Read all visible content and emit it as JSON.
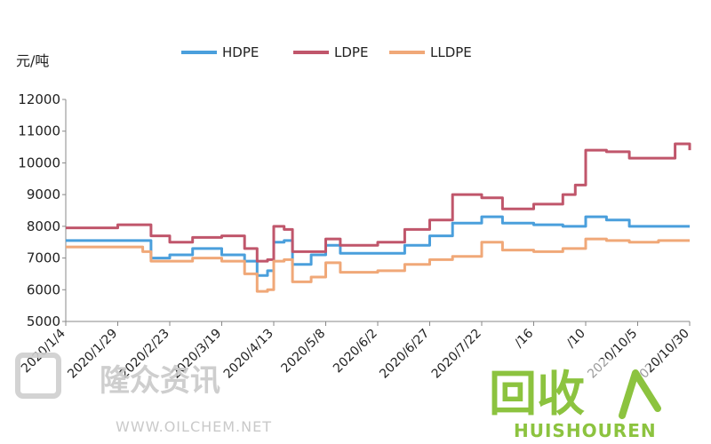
{
  "chart_data": {
    "type": "line",
    "ylabel": "元/吨",
    "ylim": [
      5000,
      12000
    ],
    "yticks": [
      5000,
      6000,
      7000,
      8000,
      9000,
      10000,
      11000,
      12000
    ],
    "x_tick_labels": [
      "2020/1/4",
      "2020/1/29",
      "2020/2/23",
      "2020/3/19",
      "2020/4/13",
      "2020/5/8",
      "2020/6/2",
      "2020/6/27",
      "2020/7/22",
      "2020/8/16",
      "2020/9/10",
      "2020/10/5",
      "2020/10/30"
    ],
    "x_tick_labels_visible": [
      "2020/1/4",
      "2020/1/29",
      "2020/2/23",
      "2020/3/19",
      "2020/4/13",
      "2020/5/8",
      "2020/6/2",
      "2020/6/27",
      "2020/7/22",
      "/16",
      "/10",
      "2020/10/5",
      "2020/10/30"
    ],
    "legend_position": "top",
    "grid": false,
    "series": [
      {
        "name": "HDPE",
        "color": "#4a9fdc",
        "x": [
          "2020/1/4",
          "2020/1/15",
          "2020/1/29",
          "2020/2/10",
          "2020/2/14",
          "2020/2/23",
          "2020/3/5",
          "2020/3/19",
          "2020/3/30",
          "2020/4/5",
          "2020/4/10",
          "2020/4/13",
          "2020/4/18",
          "2020/4/22",
          "2020/5/1",
          "2020/5/8",
          "2020/5/15",
          "2020/6/2",
          "2020/6/15",
          "2020/6/27",
          "2020/7/8",
          "2020/7/22",
          "2020/8/1",
          "2020/8/16",
          "2020/8/30",
          "2020/9/10",
          "2020/9/20",
          "2020/10/1",
          "2020/10/5",
          "2020/10/15",
          "2020/10/30"
        ],
        "values": [
          7550,
          7550,
          7550,
          7550,
          7000,
          7100,
          7300,
          7100,
          6900,
          6450,
          6600,
          7500,
          7550,
          6800,
          7100,
          7400,
          7150,
          7150,
          7400,
          7700,
          8100,
          8300,
          8100,
          8050,
          8000,
          8300,
          8200,
          8000,
          8000,
          8000,
          8000
        ]
      },
      {
        "name": "LDPE",
        "color": "#c0566b",
        "x": [
          "2020/1/4",
          "2020/1/15",
          "2020/1/29",
          "2020/2/10",
          "2020/2/14",
          "2020/2/23",
          "2020/3/5",
          "2020/3/19",
          "2020/3/30",
          "2020/4/5",
          "2020/4/10",
          "2020/4/13",
          "2020/4/18",
          "2020/4/22",
          "2020/5/1",
          "2020/5/8",
          "2020/5/15",
          "2020/6/2",
          "2020/6/15",
          "2020/6/27",
          "2020/7/8",
          "2020/7/22",
          "2020/8/1",
          "2020/8/16",
          "2020/8/30",
          "2020/9/5",
          "2020/9/10",
          "2020/9/20",
          "2020/10/1",
          "2020/10/5",
          "2020/10/15",
          "2020/10/23",
          "2020/10/30"
        ],
        "values": [
          7950,
          7950,
          8050,
          8050,
          7700,
          7500,
          7650,
          7700,
          7300,
          6900,
          6950,
          8000,
          7900,
          7200,
          7200,
          7600,
          7400,
          7500,
          7900,
          8200,
          9000,
          8900,
          8550,
          8700,
          9000,
          9300,
          10400,
          10350,
          10150,
          10150,
          10150,
          10600,
          10400
        ]
      },
      {
        "name": "LLDPE",
        "color": "#f0a878",
        "x": [
          "2020/1/4",
          "2020/1/15",
          "2020/1/29",
          "2020/2/10",
          "2020/2/14",
          "2020/2/23",
          "2020/3/5",
          "2020/3/19",
          "2020/3/30",
          "2020/4/5",
          "2020/4/10",
          "2020/4/13",
          "2020/4/18",
          "2020/4/22",
          "2020/5/1",
          "2020/5/8",
          "2020/5/15",
          "2020/6/2",
          "2020/6/15",
          "2020/6/27",
          "2020/7/8",
          "2020/7/22",
          "2020/8/1",
          "2020/8/16",
          "2020/8/30",
          "2020/9/10",
          "2020/9/20",
          "2020/10/1",
          "2020/10/5",
          "2020/10/15",
          "2020/10/30"
        ],
        "values": [
          7350,
          7350,
          7350,
          7200,
          6900,
          6900,
          7000,
          6900,
          6500,
          5950,
          6000,
          6900,
          6950,
          6250,
          6400,
          6850,
          6550,
          6600,
          6800,
          6950,
          7050,
          7500,
          7250,
          7200,
          7300,
          7600,
          7550,
          7500,
          7500,
          7550,
          7550
        ]
      }
    ]
  },
  "watermark": {
    "brand_cn": "隆众资讯",
    "brand_url": "WWW.OILCHEM.NET",
    "logo_text": "回收",
    "logo_sub": "HUISHOUREN"
  }
}
